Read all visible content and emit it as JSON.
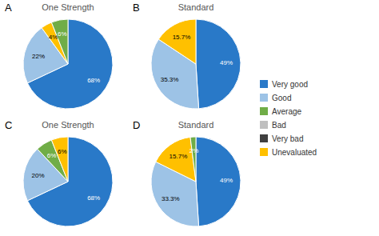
{
  "chart_data": [
    {
      "type": "pie",
      "title": "One Strength",
      "annotations": [
        "A"
      ],
      "values": [
        68,
        22,
        4,
        6
      ],
      "value_labels": [
        "68%",
        "22%",
        "4%",
        "6%"
      ],
      "colors": [
        "#2979C8",
        "#9DC3E6",
        "#FFC000",
        "#70AD47"
      ],
      "data_labels": true
    },
    {
      "type": "pie",
      "title": "Standard",
      "annotations": [
        "B"
      ],
      "values": [
        49,
        35.3,
        15.7
      ],
      "value_labels": [
        "49%",
        "35.3%",
        "15.7%"
      ],
      "colors": [
        "#2979C8",
        "#9DC3E6",
        "#FFC000"
      ],
      "data_labels": true
    },
    {
      "type": "pie",
      "title": "One Strength",
      "annotations": [
        "C"
      ],
      "values": [
        68,
        20,
        6,
        6
      ],
      "value_labels": [
        "68%",
        "20%",
        "6%",
        "6%"
      ],
      "colors": [
        "#2979C8",
        "#9DC3E6",
        "#70AD47",
        "#FFC000"
      ],
      "data_labels": true
    },
    {
      "type": "pie",
      "title": "Standard",
      "annotations": [
        "D"
      ],
      "values": [
        49,
        33.3,
        15.7,
        2
      ],
      "value_labels": [
        "49%",
        "33.3%",
        "15.7%",
        "2%"
      ],
      "colors": [
        "#2979C8",
        "#9DC3E6",
        "#FFC000",
        "#70AD47"
      ],
      "data_labels": true
    },
    {
      "type": "legend",
      "series": [
        {
          "name": "Very good",
          "color": "#2979C8"
        },
        {
          "name": "Good",
          "color": "#9DC3E6"
        },
        {
          "name": "Average",
          "color": "#70AD47"
        },
        {
          "name": "Bad",
          "color": "#BFBFBF"
        },
        {
          "name": "Very bad",
          "color": "#404040"
        },
        {
          "name": "Unevaluated",
          "color": "#FFC000"
        }
      ]
    }
  ]
}
